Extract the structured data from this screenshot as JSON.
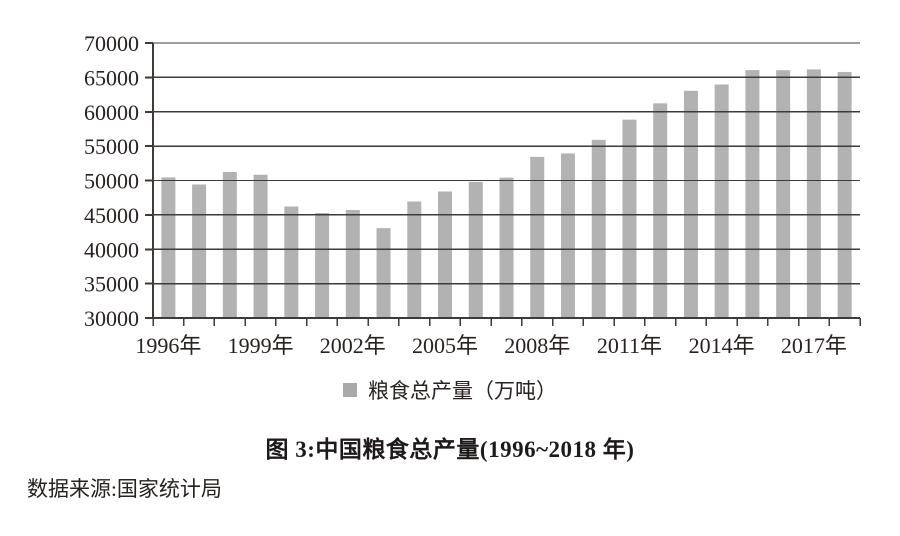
{
  "chart_data": {
    "type": "bar",
    "title": "图 3:中国粮食总产量(1996~2018 年)",
    "legend_label": "粮食总产量（万吨）",
    "source": "数据来源:国家统计局",
    "categories": [
      "1996年",
      "1997年",
      "1998年",
      "1999年",
      "2000年",
      "2001年",
      "2002年",
      "2003年",
      "2004年",
      "2005年",
      "2006年",
      "2007年",
      "2008年",
      "2009年",
      "2010年",
      "2011年",
      "2012年",
      "2013年",
      "2014年",
      "2015年",
      "2016年",
      "2017年",
      "2018年"
    ],
    "values": [
      50454,
      49417,
      51230,
      50839,
      46218,
      45264,
      45706,
      43070,
      46947,
      48402,
      49804,
      50414,
      53434,
      53941,
      55911,
      58849,
      61223,
      63048,
      63965,
      66060,
      66044,
      66161,
      65789
    ],
    "x_shown_tick_labels": [
      "1996年",
      "1999年",
      "2002年",
      "2005年",
      "2008年",
      "2011年",
      "2014年",
      "2017年"
    ],
    "x_label_step": 3,
    "ylim": [
      30000,
      70000
    ],
    "y_tick_step": 5000,
    "y_tick_labels": [
      "30000",
      "35000",
      "40000",
      "45000",
      "50000",
      "55000",
      "60000",
      "65000",
      "70000"
    ],
    "grid": true,
    "legend_position": "bottom",
    "colors": {
      "bar": "#b2b2b2",
      "grid": "#403a37",
      "text": "#272220",
      "legend_swatch": "#a9a9a9"
    }
  }
}
